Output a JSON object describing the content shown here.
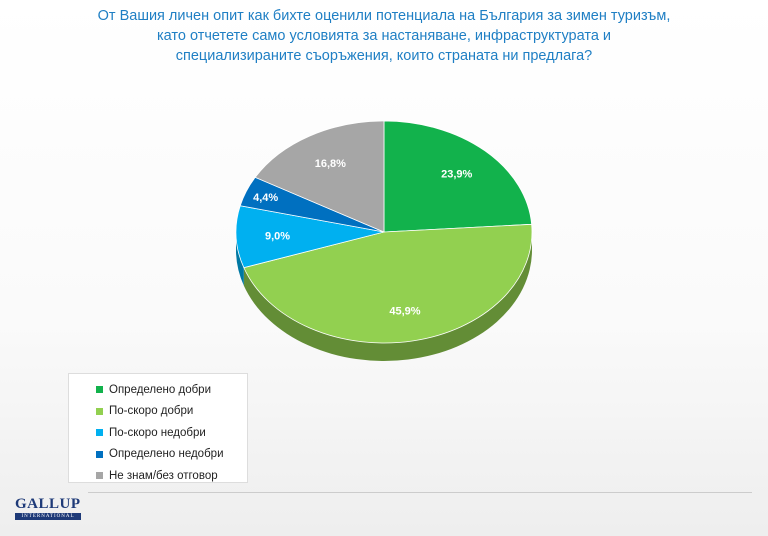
{
  "title_lines": [
    "От Вашия личен опит как бихте оценили потенциала на България за зимен туризъм,",
    "като отчетете само условията за настаняване, инфраструктурата и",
    "специализираните съоръжения, които страната ни предлага?"
  ],
  "chart_data": {
    "type": "pie",
    "style": "3d",
    "categories": [
      "Определено добри",
      "По-скоро добри",
      "По-скоро недобри",
      "Определено недобри",
      "Не знам/без отговор"
    ],
    "values": [
      23.9,
      45.9,
      9.0,
      4.4,
      16.8
    ],
    "labels": [
      "23,9%",
      "45,9%",
      "9,0%",
      "4,4%",
      "16,8%"
    ],
    "colors": [
      "#12b24c",
      "#92d050",
      "#00b0f0",
      "#0070c0",
      "#a6a6a6"
    ],
    "legend_position": "bottom-left"
  },
  "logo": {
    "name": "GALLUP",
    "sub": "INTERNATIONAL"
  }
}
